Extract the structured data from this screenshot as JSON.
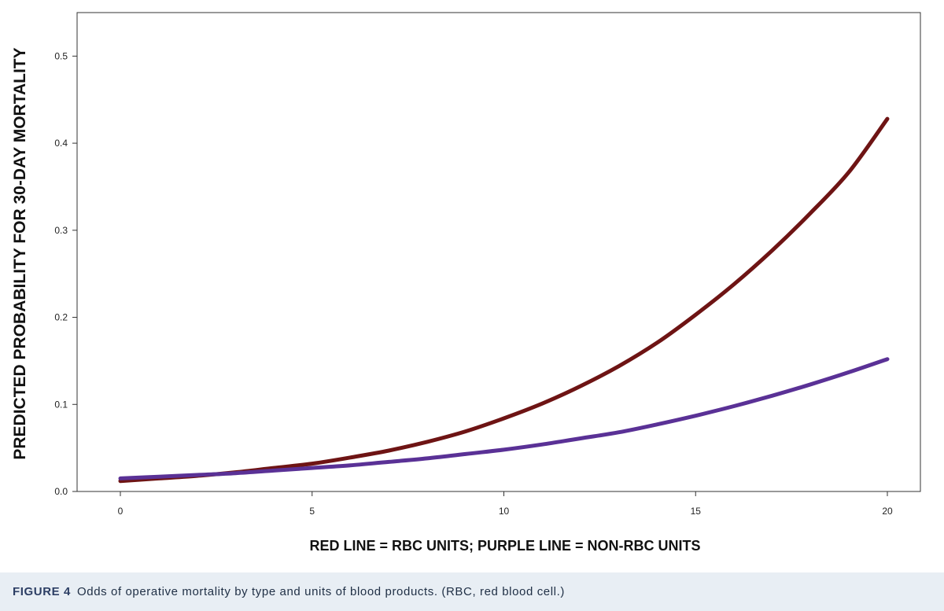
{
  "caption": {
    "label": "FIGURE 4",
    "text": "Odds of operative mortality by type and units of blood products. (RBC, red blood cell.)"
  },
  "chart_data": {
    "type": "line",
    "title": "",
    "xlabel": "RED LINE = RBC UNITS; PURPLE LINE = NON-RBC UNITS",
    "ylabel": "PREDICTED PROBABILITY FOR 30-DAY MORTALITY",
    "xlim": [
      0,
      20
    ],
    "ylim": [
      0,
      0.55
    ],
    "xticks": [
      0,
      5,
      10,
      15,
      20
    ],
    "yticks": [
      0.0,
      0.1,
      0.2,
      0.3,
      0.4,
      0.5
    ],
    "ytick_labels": [
      "0.0",
      "0.1",
      "0.2",
      "0.3",
      "0.4",
      "0.5"
    ],
    "xtick_labels": [
      "0",
      "5",
      "10",
      "15",
      "20"
    ],
    "grid": false,
    "series": [
      {
        "color": "#6e1414",
        "x": [
          0,
          1,
          2,
          3,
          4,
          5,
          6,
          7,
          8,
          9,
          10,
          11,
          12,
          13,
          14,
          15,
          16,
          17,
          18,
          19,
          20
        ],
        "values": [
          0.012,
          0.015,
          0.018,
          0.022,
          0.027,
          0.032,
          0.039,
          0.047,
          0.057,
          0.069,
          0.084,
          0.101,
          0.121,
          0.144,
          0.171,
          0.203,
          0.238,
          0.277,
          0.32,
          0.367,
          0.428
        ]
      },
      {
        "color": "#5a3196",
        "x": [
          0,
          1,
          2,
          3,
          4,
          5,
          6,
          7,
          8,
          9,
          10,
          11,
          12,
          13,
          14,
          15,
          16,
          17,
          18,
          19,
          20
        ],
        "values": [
          0.015,
          0.017,
          0.019,
          0.021,
          0.024,
          0.027,
          0.03,
          0.034,
          0.038,
          0.043,
          0.048,
          0.054,
          0.061,
          0.068,
          0.077,
          0.087,
          0.098,
          0.11,
          0.123,
          0.137,
          0.152
        ]
      }
    ]
  }
}
